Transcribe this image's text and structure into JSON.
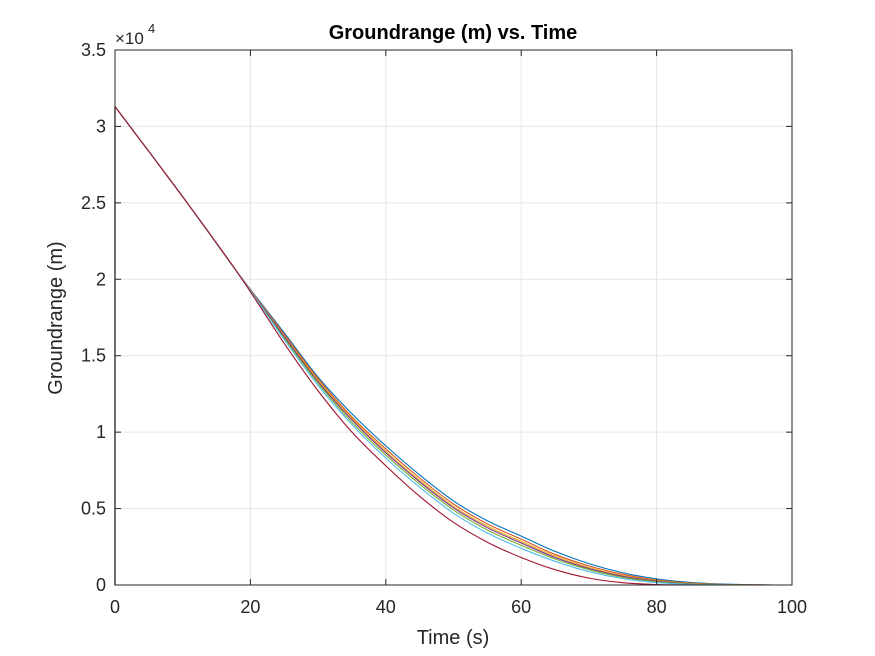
{
  "chart_data": {
    "type": "line",
    "title": "Groundrange (m) vs. Time",
    "xlabel": "Time (s)",
    "ylabel": "Groundrange (m)",
    "xlim": [
      0,
      100
    ],
    "ylim": [
      0,
      35000
    ],
    "xticks": [
      0,
      20,
      40,
      60,
      80,
      100
    ],
    "xtick_labels": [
      "0",
      "20",
      "40",
      "60",
      "80",
      "100"
    ],
    "yticks": [
      0,
      5000,
      10000,
      15000,
      20000,
      25000,
      30000,
      35000
    ],
    "ytick_labels": [
      "0",
      "0.5",
      "1",
      "1.5",
      "2",
      "2.5",
      "3",
      "3.5"
    ],
    "y_exponent": {
      "base": "10",
      "power": "4"
    },
    "grid": true,
    "series": [
      {
        "color": "#0072BD",
        "x": [
          0,
          10,
          18,
          25,
          30,
          35,
          40,
          45,
          50,
          55,
          60,
          65,
          70,
          75,
          80,
          85,
          90,
          95,
          97.5
        ],
        "y": [
          31300,
          25400,
          20500,
          16500,
          13600,
          11200,
          9100,
          7200,
          5500,
          4200,
          3200,
          2200,
          1400,
          800,
          400,
          170,
          60,
          15,
          0
        ]
      },
      {
        "color": "#D95319",
        "x": [
          0,
          10,
          18,
          25,
          30,
          35,
          40,
          45,
          50,
          55,
          60,
          65,
          70,
          75,
          80,
          85,
          90,
          95,
          97
        ],
        "y": [
          31300,
          25400,
          20500,
          16400,
          13500,
          11000,
          8900,
          7000,
          5300,
          4000,
          3000,
          2000,
          1250,
          700,
          330,
          130,
          40,
          10,
          0
        ]
      },
      {
        "color": "#EDB120",
        "x": [
          0,
          10,
          18,
          25,
          30,
          35,
          40,
          45,
          50,
          55,
          60,
          65,
          70,
          75,
          80,
          85,
          90,
          95
        ],
        "y": [
          31300,
          25400,
          20500,
          16300,
          13400,
          10900,
          8750,
          6850,
          5150,
          3850,
          2850,
          1900,
          1150,
          620,
          280,
          100,
          25,
          0
        ]
      },
      {
        "color": "#7E2F8E",
        "x": [
          0,
          10,
          18,
          25,
          30,
          35,
          40,
          45,
          50,
          55,
          60,
          65,
          70,
          75,
          80,
          85,
          90,
          94
        ],
        "y": [
          31300,
          25400,
          20500,
          16250,
          13300,
          10800,
          8650,
          6750,
          5050,
          3750,
          2750,
          1800,
          1080,
          570,
          250,
          80,
          15,
          0
        ]
      },
      {
        "color": "#77AC30",
        "x": [
          0,
          10,
          18,
          25,
          30,
          35,
          40,
          45,
          50,
          55,
          60,
          65,
          70,
          75,
          80,
          85,
          90,
          93.5
        ],
        "y": [
          31300,
          25400,
          20500,
          16150,
          13200,
          10650,
          8500,
          6600,
          4900,
          3600,
          2600,
          1700,
          1000,
          500,
          210,
          60,
          10,
          0
        ]
      },
      {
        "color": "#4DBEEE",
        "x": [
          0,
          10,
          18,
          25,
          30,
          35,
          40,
          45,
          50,
          55,
          60,
          65,
          70,
          75,
          80,
          85,
          90,
          93
        ],
        "y": [
          31300,
          25400,
          20500,
          16050,
          13050,
          10500,
          8300,
          6400,
          4700,
          3400,
          2400,
          1550,
          880,
          420,
          160,
          40,
          5,
          0
        ]
      },
      {
        "color": "#A2142F",
        "x": [
          0,
          10,
          18,
          25,
          30,
          35,
          40,
          45,
          50,
          55,
          60,
          65,
          70,
          75,
          80,
          85,
          88
        ],
        "y": [
          31300,
          25400,
          20500,
          15800,
          12700,
          10000,
          7800,
          5800,
          4100,
          2800,
          1800,
          1000,
          450,
          150,
          30,
          5,
          0
        ]
      }
    ]
  }
}
